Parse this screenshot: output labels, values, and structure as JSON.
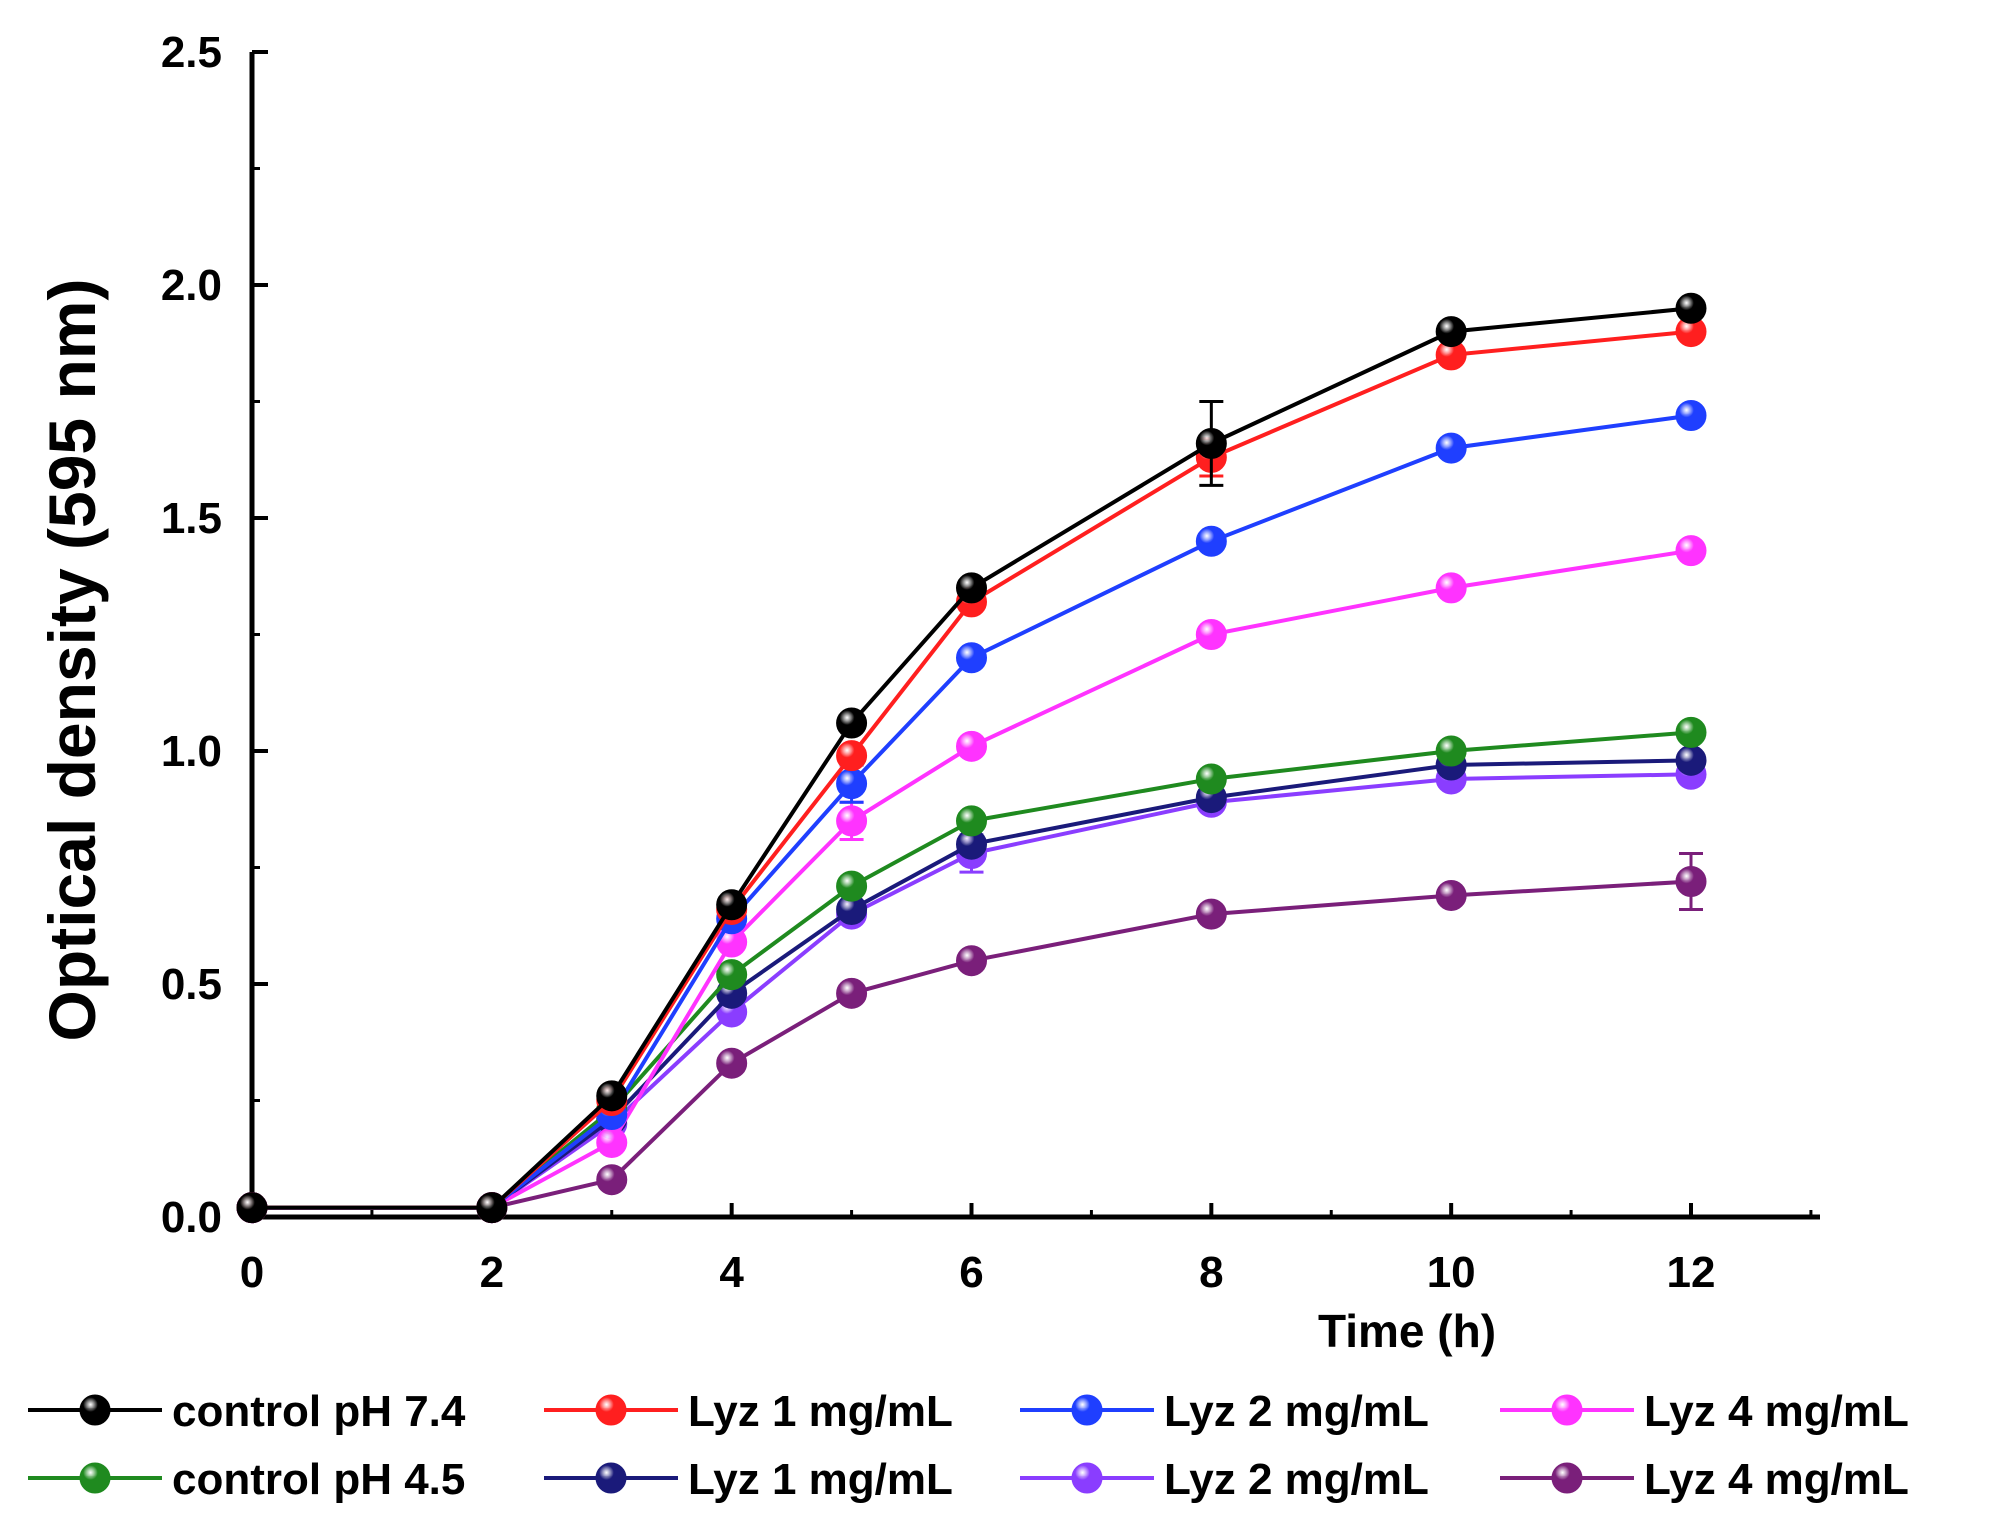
{
  "chart_data": {
    "type": "line",
    "title": "",
    "xlabel": "Time (h)",
    "ylabel": "Optical density (595 nm)",
    "xlim": [
      0,
      13
    ],
    "ylim": [
      0,
      2.5
    ],
    "xticks": [
      0,
      2,
      4,
      6,
      8,
      10,
      12
    ],
    "xtick_labels": [
      "0",
      "2",
      "4",
      "6",
      "8",
      "10",
      "12"
    ],
    "yticks": [
      0,
      0.5,
      1.0,
      1.5,
      2.0,
      2.5
    ],
    "ytick_labels": [
      "0.0",
      "0.5",
      "1.0",
      "1.5",
      "2.0",
      "2.5"
    ],
    "grid": false,
    "legend_position": "bottom",
    "x": [
      0,
      2,
      3,
      4,
      5,
      6,
      8,
      10,
      12
    ],
    "series": [
      {
        "name": "control pH 7.4",
        "color": "#000000",
        "values": [
          0.02,
          0.02,
          0.26,
          0.67,
          1.06,
          1.35,
          1.66,
          1.9,
          1.95
        ],
        "errors": [
          0,
          0,
          0.01,
          0.01,
          0.02,
          0.02,
          0.09,
          0.02,
          0.02
        ]
      },
      {
        "name": "Lyz 1 mg/mL",
        "color": "#ff1f1f",
        "values": [
          0.02,
          0.02,
          0.25,
          0.66,
          0.99,
          1.32,
          1.63,
          1.85,
          1.9
        ],
        "errors": [
          0,
          0,
          0.01,
          0.01,
          0.02,
          0.02,
          0.04,
          0.02,
          0.02
        ]
      },
      {
        "name": "Lyz 2 mg/mL",
        "color": "#1f3fff",
        "values": [
          0.02,
          0.02,
          0.22,
          0.64,
          0.93,
          1.2,
          1.45,
          1.65,
          1.72
        ],
        "errors": [
          0,
          0,
          0.01,
          0.01,
          0.04,
          0.02,
          0.02,
          0.02,
          0.02
        ]
      },
      {
        "name": "Lyz 4 mg/mL",
        "color": "#ff33ff",
        "values": [
          0.02,
          0.02,
          0.16,
          0.59,
          0.85,
          1.01,
          1.25,
          1.35,
          1.43
        ],
        "errors": [
          0,
          0,
          0.01,
          0.02,
          0.04,
          0.02,
          0.02,
          0.02,
          0.02
        ]
      },
      {
        "name": "control pH 4.5",
        "color": "#1f8a1f",
        "values": [
          0.02,
          0.02,
          0.23,
          0.52,
          0.71,
          0.85,
          0.94,
          1.0,
          1.04
        ],
        "errors": [
          0,
          0,
          0.01,
          0.01,
          0.02,
          0.02,
          0.02,
          0.02,
          0.02
        ]
      },
      {
        "name": "Lyz 1 mg/mL",
        "color": "#1a1a7a",
        "values": [
          0.02,
          0.02,
          0.21,
          0.48,
          0.66,
          0.8,
          0.9,
          0.97,
          0.98
        ],
        "errors": [
          0,
          0,
          0.01,
          0.01,
          0.02,
          0.02,
          0.02,
          0.02,
          0.02
        ]
      },
      {
        "name": "Lyz 2 mg/mL",
        "color": "#8a3dff",
        "values": [
          0.02,
          0.02,
          0.2,
          0.44,
          0.65,
          0.78,
          0.89,
          0.94,
          0.95
        ],
        "errors": [
          0,
          0,
          0.01,
          0.01,
          0.02,
          0.04,
          0.02,
          0.02,
          0.02
        ]
      },
      {
        "name": "Lyz 4 mg/mL",
        "color": "#7a1f7a",
        "values": [
          0.02,
          0.02,
          0.08,
          0.33,
          0.48,
          0.55,
          0.65,
          0.69,
          0.72
        ],
        "errors": [
          0,
          0,
          0.01,
          0.01,
          0.02,
          0.02,
          0.02,
          0.02,
          0.06
        ]
      }
    ]
  }
}
